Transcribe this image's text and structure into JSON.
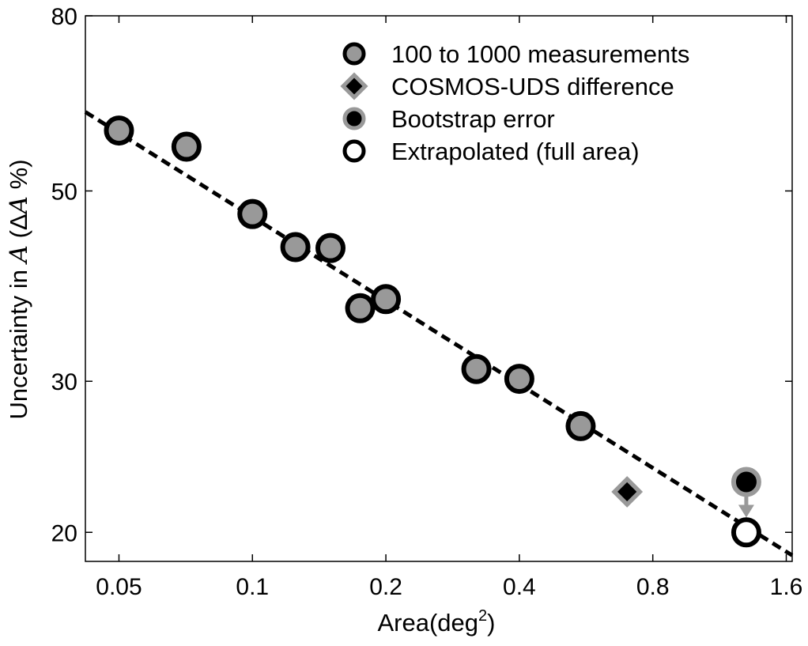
{
  "chart_data": {
    "type": "scatter",
    "x_scale": "log",
    "y_scale": "log",
    "xlabel_text": "Area(deg",
    "xlabel_sup": "2",
    "xlabel_close": ")",
    "ylabel": "Uncertainty in A (ΔA %)",
    "ylabel_parts": {
      "prefix": "Uncertainty in ",
      "italic_a": "A",
      "mid": " (Δ",
      "italic_b": "A",
      "suffix": " %)"
    },
    "xlim": [
      0.042,
      1.65
    ],
    "ylim": [
      18.5,
      80
    ],
    "x_ticks": [
      {
        "value": 0.05,
        "label": "0.05"
      },
      {
        "value": 0.1,
        "label": "0.1"
      },
      {
        "value": 0.2,
        "label": "0.2"
      },
      {
        "value": 0.4,
        "label": "0.4"
      },
      {
        "value": 0.8,
        "label": "0.8"
      },
      {
        "value": 1.6,
        "label": "1.6"
      }
    ],
    "y_ticks": [
      {
        "value": 20,
        "label": "20"
      },
      {
        "value": 30,
        "label": "30"
      },
      {
        "value": 50,
        "label": "50"
      },
      {
        "value": 80,
        "label": "80"
      }
    ],
    "series": [
      {
        "name": "100 to 1000 measurements",
        "marker": "circle",
        "fill": "#999999",
        "edge": "#000000",
        "points": [
          {
            "x": 0.05,
            "y": 58.8
          },
          {
            "x": 0.071,
            "y": 56.3
          },
          {
            "x": 0.1,
            "y": 47.0
          },
          {
            "x": 0.125,
            "y": 43.0
          },
          {
            "x": 0.15,
            "y": 42.9
          },
          {
            "x": 0.175,
            "y": 36.5
          },
          {
            "x": 0.2,
            "y": 37.4
          },
          {
            "x": 0.32,
            "y": 31.0
          },
          {
            "x": 0.4,
            "y": 30.2
          },
          {
            "x": 0.55,
            "y": 26.6
          }
        ]
      },
      {
        "name": "COSMOS-UDS difference",
        "marker": "diamond",
        "fill": "#000000",
        "edge": "#999999",
        "points": [
          {
            "x": 0.7,
            "y": 22.3
          }
        ]
      },
      {
        "name": "Bootstrap error",
        "marker": "circle",
        "fill": "#000000",
        "edge": "#999999",
        "points": [
          {
            "x": 1.3,
            "y": 22.9
          }
        ]
      },
      {
        "name": "Extrapolated (full area)",
        "marker": "circle",
        "fill": "#ffffff",
        "edge": "#000000",
        "points": [
          {
            "x": 1.3,
            "y": 20.0
          }
        ]
      }
    ],
    "fit_line": {
      "style": "dashed",
      "color": "#000000",
      "points": [
        {
          "x": 0.042,
          "y": 61.8
        },
        {
          "x": 1.65,
          "y": 18.8
        }
      ]
    },
    "annotation_arrow": {
      "color": "#999999",
      "from": {
        "x": 1.3,
        "y": 22.3
      },
      "to": {
        "x": 1.3,
        "y": 20.9
      }
    },
    "legend": {
      "placement": "top-right",
      "entries": [
        {
          "label": "100 to 1000 measurements",
          "marker": "circle",
          "fill": "#999999",
          "edge": "#000000"
        },
        {
          "label": "COSMOS-UDS difference",
          "marker": "diamond",
          "fill": "#000000",
          "edge": "#999999"
        },
        {
          "label": "Bootstrap error",
          "marker": "circle",
          "fill": "#000000",
          "edge": "#999999"
        },
        {
          "label": "Extrapolated (full area)",
          "marker": "circle",
          "fill": "#ffffff",
          "edge": "#000000"
        }
      ]
    }
  }
}
